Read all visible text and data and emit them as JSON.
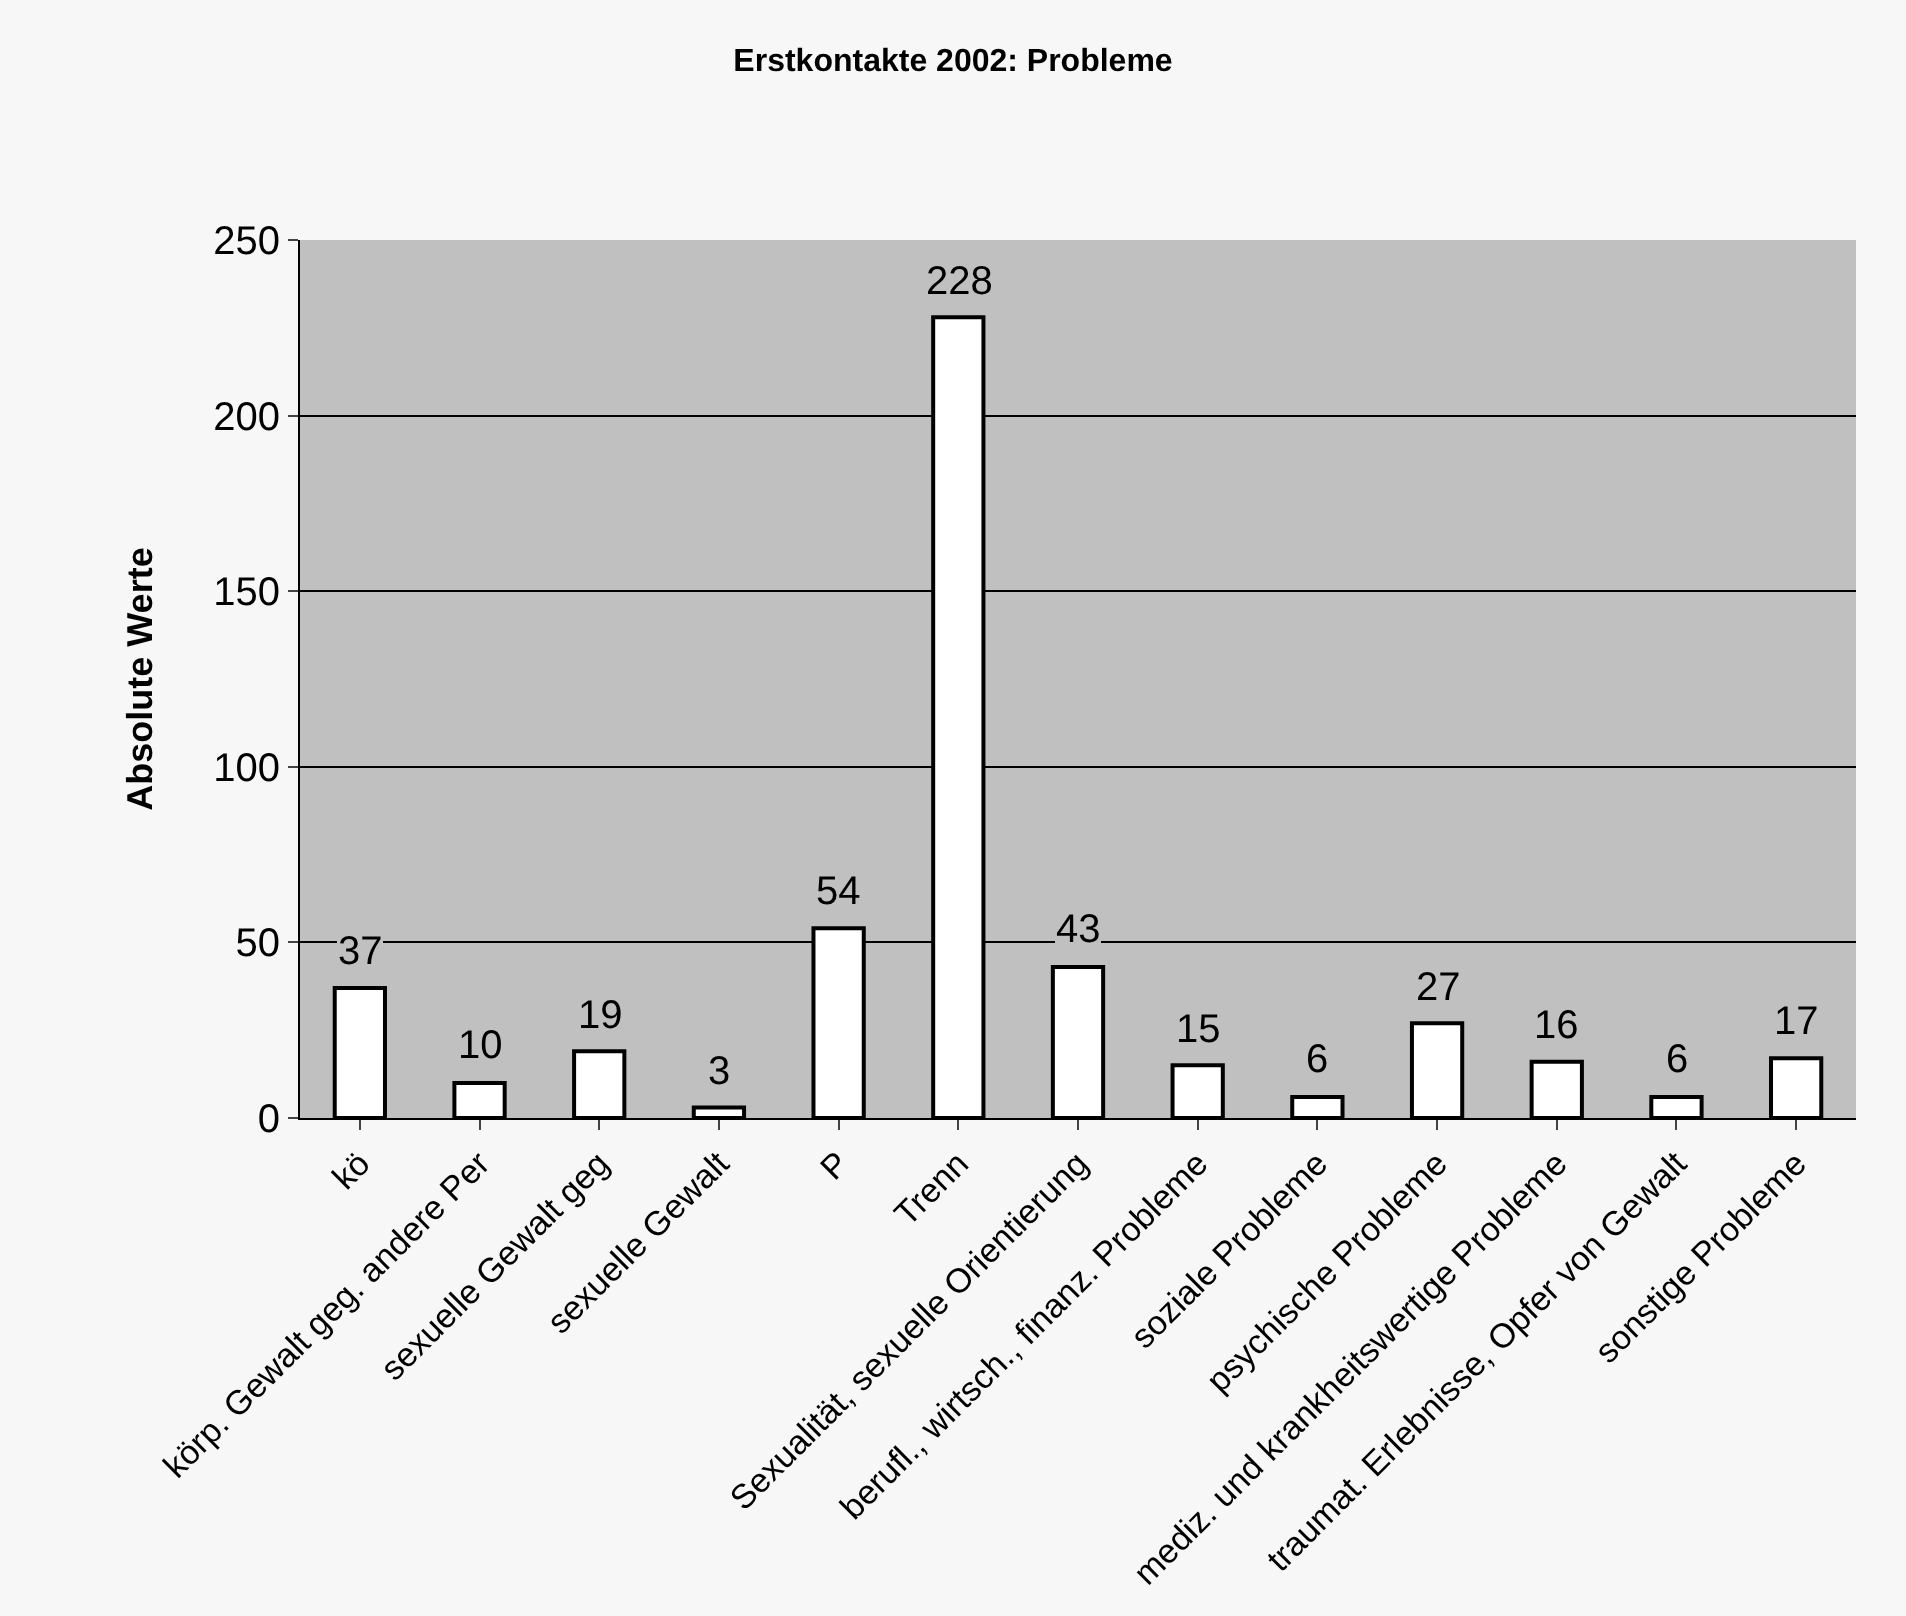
{
  "chart_data": {
    "type": "bar",
    "title": "Erstkontakte 2002: Probleme",
    "ylabel": "Absolute Werte",
    "categories": [
      "kö",
      "körp. Gewalt geg. andere Per",
      "sexuelle Gewalt geg",
      "sexuelle Gewalt",
      "P",
      "Trenn",
      "Sexualität, sexuelle Orientierung",
      "berufl., wirtsch., finanz. Probleme",
      "soziale Probleme",
      "psychische Probleme",
      "mediz. und krankheitswertige Probleme",
      "traumat. Erlebnisse, Opfer von Gewalt",
      "sonstige Probleme"
    ],
    "values": [
      37,
      10,
      19,
      3,
      54,
      228,
      43,
      15,
      6,
      27,
      16,
      6,
      17
    ],
    "color": "#ffffff",
    "ylim": [
      0,
      250
    ],
    "yticks": [
      0,
      50,
      100,
      150,
      200,
      250
    ],
    "grid": "y",
    "data_labels": true
  }
}
